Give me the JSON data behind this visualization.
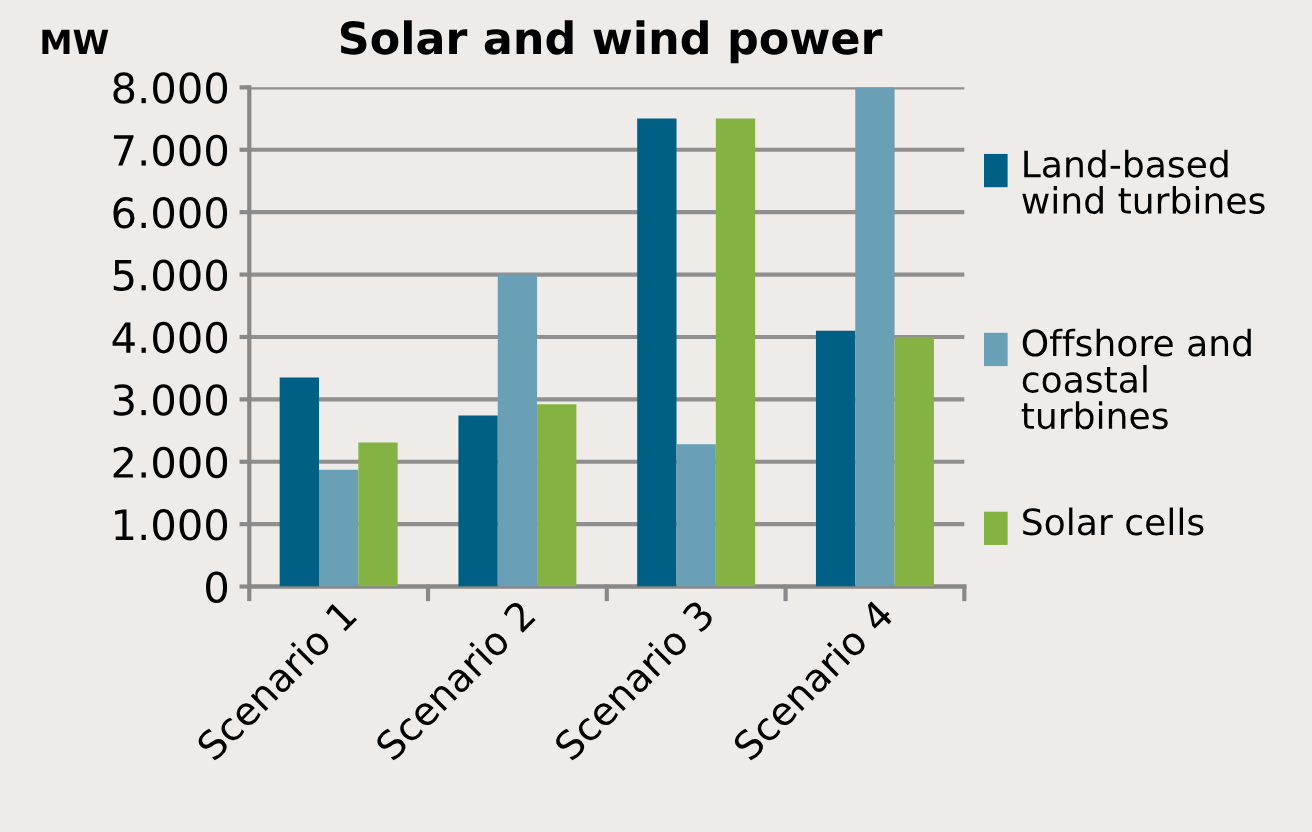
{
  "chart_data": {
    "type": "bar",
    "title": "Solar and wind power",
    "ylabel": "MW",
    "categories": [
      "Scenario 1",
      "Scenario 2",
      "Scenario 3",
      "Scenario 4"
    ],
    "series": [
      {
        "name": "Land-based wind turbines",
        "color": "#005f84",
        "values": [
          3350,
          2740,
          7500,
          4100
        ]
      },
      {
        "name": "Offshore and coastal turbines",
        "color": "#69a0b6",
        "values": [
          1870,
          5000,
          2280,
          8000
        ]
      },
      {
        "name": "Solar cells",
        "color": "#84b343",
        "values": [
          2310,
          2920,
          7500,
          4000
        ]
      }
    ],
    "ylim": [
      0,
      8000
    ],
    "yticks": [
      {
        "value": 0,
        "label": "0"
      },
      {
        "value": 1000,
        "label": "1.000"
      },
      {
        "value": 2000,
        "label": "2.000"
      },
      {
        "value": 3000,
        "label": "3.000"
      },
      {
        "value": 4000,
        "label": "4.000"
      },
      {
        "value": 5000,
        "label": "5.000"
      },
      {
        "value": 6000,
        "label": "6.000"
      },
      {
        "value": 7000,
        "label": "7.000"
      },
      {
        "value": 8000,
        "label": "8.000"
      }
    ],
    "grid": "y",
    "legend": "right"
  }
}
